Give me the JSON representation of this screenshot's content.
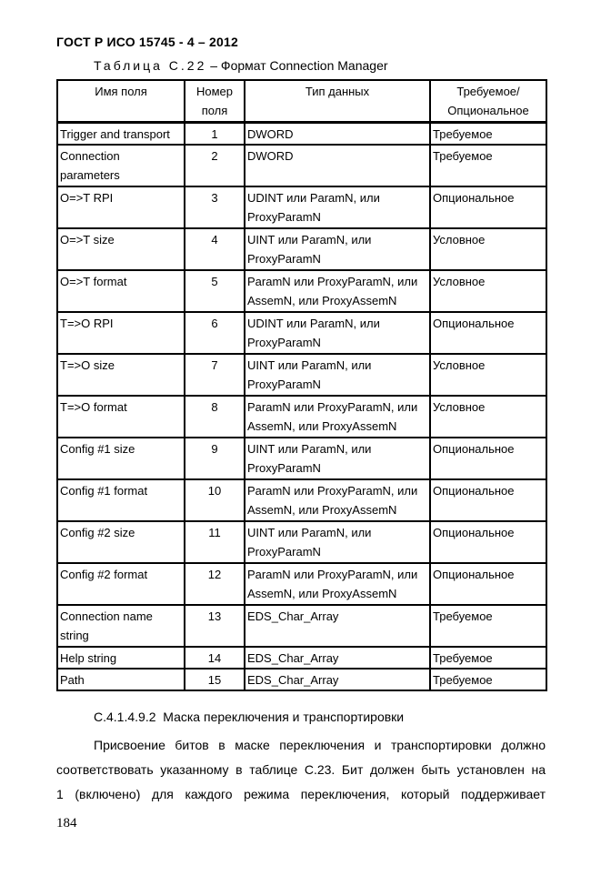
{
  "page": {
    "doc_header": "ГОСТ Р ИСО 15745 - 4 – 2012",
    "page_number": "184"
  },
  "caption": {
    "label": "Таблица С.22",
    "rest": " – Формат Connection Manager"
  },
  "table": {
    "headers": {
      "field_name": "Имя поля",
      "field_number": "Номер\nполя",
      "data_type": "Тип данных",
      "requirement": "Требуемое/\nОпциональное"
    },
    "rows": [
      {
        "name": "Trigger and transport",
        "number": "1",
        "type": "DWORD",
        "requirement": "Требуемое"
      },
      {
        "name": "Connection\nparameters",
        "number": "2",
        "type": "DWORD",
        "requirement": "Требуемое"
      },
      {
        "name": "O=>T RPI",
        "number": "3",
        "type": "UDINT или ParamN, или\nProxyParamN",
        "requirement": "Опциональное"
      },
      {
        "name": "O=>T size",
        "number": "4",
        "type": "UINT или ParamN, или\nProxyParamN",
        "requirement": "Условное"
      },
      {
        "name": "O=>T format",
        "number": "5",
        "type": "ParamN или ProxyParamN, или\nAssemN, или ProxyAssemN",
        "requirement": "Условное"
      },
      {
        "name": "T=>O RPI",
        "number": "6",
        "type": "UDINT или ParamN, или\nProxyParamN",
        "requirement": "Опциональное"
      },
      {
        "name": "T=>O size",
        "number": "7",
        "type": "UINT или ParamN, или\nProxyParamN",
        "requirement": "Условное"
      },
      {
        "name": "T=>O format",
        "number": "8",
        "type": "ParamN или ProxyParamN, или\nAssemN, или ProxyAssemN",
        "requirement": "Условное"
      },
      {
        "name": "Config #1 size",
        "number": "9",
        "type": "UINT или ParamN, или\nProxyParamN",
        "requirement": "Опциональное"
      },
      {
        "name": "Config #1 format",
        "number": "10",
        "type": "ParamN или ProxyParamN, или\nAssemN, или ProxyAssemN",
        "requirement": "Опциональное"
      },
      {
        "name": "Config #2 size",
        "number": "11",
        "type": "UINT или ParamN, или\nProxyParamN",
        "requirement": "Опциональное"
      },
      {
        "name": "Config #2 format",
        "number": "12",
        "type": "ParamN или ProxyParamN, или\nAssemN, или ProxyAssemN",
        "requirement": "Опциональное"
      },
      {
        "name": "Connection name\nstring",
        "number": "13",
        "type": "EDS_Char_Array",
        "requirement": "Требуемое"
      },
      {
        "name": "Help string",
        "number": "14",
        "type": "EDS_Char_Array",
        "requirement": "Требуемое"
      },
      {
        "name": "Path",
        "number": "15",
        "type": "EDS_Char_Array",
        "requirement": "Требуемое"
      }
    ]
  },
  "section": {
    "heading": "С.4.1.4.9.2  Маска переключения и транспортировки",
    "paragraph_lines": [
      "Присвоение битов в маске переключения и транспортировки должно",
      "соответствовать указанному в таблице С.23. Бит должен быть установлен на",
      "1 (включено) для каждого режима переключения, который поддерживает"
    ]
  }
}
